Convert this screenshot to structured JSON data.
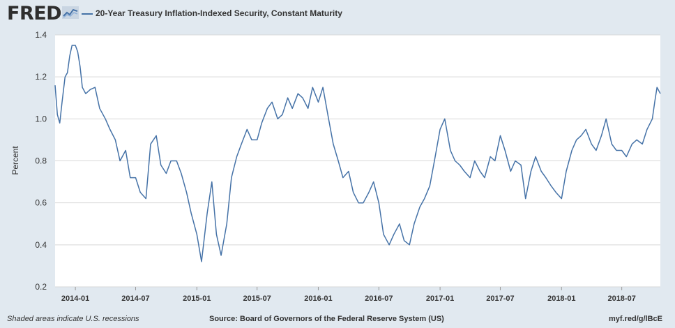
{
  "header": {
    "logo_text": "FRED",
    "series_title": "20-Year Treasury Inflation-Indexed Security, Constant Maturity"
  },
  "footer": {
    "recession_note": "Shaded areas indicate U.S. recessions",
    "source": "Source: Board of Governors of the Federal Reserve System (US)",
    "short_url": "myf.red/g/lBcE"
  },
  "colors": {
    "line": "#4572a7",
    "plot_bg": "#ffffff",
    "page_bg": "#e1e9f0"
  },
  "chart_data": {
    "type": "line",
    "title": "20-Year Treasury Inflation-Indexed Security, Constant Maturity",
    "xlabel": "",
    "ylabel": "Percent",
    "ylim": [
      0.2,
      1.4
    ],
    "xlim": [
      "2013-11-01",
      "2018-10-25"
    ],
    "yticks": [
      0.2,
      0.4,
      0.6,
      0.8,
      1.0,
      1.2,
      1.4
    ],
    "ytick_labels": [
      "0.2",
      "0.4",
      "0.6",
      "0.8",
      "1.0",
      "1.2",
      "1.4"
    ],
    "xtick_dates": [
      "2014-01-01",
      "2014-07-01",
      "2015-01-01",
      "2015-07-01",
      "2016-01-01",
      "2016-07-01",
      "2017-01-01",
      "2017-07-01",
      "2018-01-01",
      "2018-07-01"
    ],
    "xtick_labels": [
      "2014-01",
      "2014-07",
      "2015-01",
      "2015-07",
      "2016-01",
      "2016-07",
      "2017-01",
      "2017-07",
      "2018-01",
      "2018-07"
    ],
    "grid": true,
    "series": [
      {
        "name": "20-Year Treasury Inflation-Indexed Security, Constant Maturity",
        "x": [
          "2013-11-01",
          "2013-11-08",
          "2013-11-15",
          "2013-11-22",
          "2013-12-01",
          "2013-12-08",
          "2013-12-15",
          "2013-12-22",
          "2014-01-01",
          "2014-01-08",
          "2014-01-15",
          "2014-01-22",
          "2014-02-01",
          "2014-02-15",
          "2014-03-01",
          "2014-03-15",
          "2014-04-01",
          "2014-04-15",
          "2014-05-01",
          "2014-05-15",
          "2014-06-01",
          "2014-06-15",
          "2014-07-01",
          "2014-07-15",
          "2014-08-01",
          "2014-08-15",
          "2014-09-01",
          "2014-09-15",
          "2014-10-01",
          "2014-10-15",
          "2014-11-01",
          "2014-11-15",
          "2014-12-01",
          "2014-12-15",
          "2015-01-01",
          "2015-01-15",
          "2015-02-01",
          "2015-02-15",
          "2015-03-01",
          "2015-03-15",
          "2015-04-01",
          "2015-04-15",
          "2015-05-01",
          "2015-05-15",
          "2015-06-01",
          "2015-06-15",
          "2015-07-01",
          "2015-07-15",
          "2015-08-01",
          "2015-08-15",
          "2015-09-01",
          "2015-09-15",
          "2015-10-01",
          "2015-10-15",
          "2015-11-01",
          "2015-11-15",
          "2015-12-01",
          "2015-12-15",
          "2016-01-01",
          "2016-01-15",
          "2016-02-01",
          "2016-02-15",
          "2016-03-01",
          "2016-03-15",
          "2016-04-01",
          "2016-04-15",
          "2016-05-01",
          "2016-05-15",
          "2016-06-01",
          "2016-06-15",
          "2016-07-01",
          "2016-07-15",
          "2016-08-01",
          "2016-08-15",
          "2016-09-01",
          "2016-09-15",
          "2016-10-01",
          "2016-10-15",
          "2016-11-01",
          "2016-11-15",
          "2016-12-01",
          "2016-12-15",
          "2017-01-01",
          "2017-01-15",
          "2017-02-01",
          "2017-02-15",
          "2017-03-01",
          "2017-03-15",
          "2017-04-01",
          "2017-04-15",
          "2017-05-01",
          "2017-05-15",
          "2017-06-01",
          "2017-06-15",
          "2017-07-01",
          "2017-07-15",
          "2017-08-01",
          "2017-08-15",
          "2017-09-01",
          "2017-09-15",
          "2017-10-01",
          "2017-10-15",
          "2017-11-01",
          "2017-11-15",
          "2017-12-01",
          "2017-12-15",
          "2018-01-01",
          "2018-01-15",
          "2018-02-01",
          "2018-02-15",
          "2018-03-01",
          "2018-03-15",
          "2018-04-01",
          "2018-04-15",
          "2018-05-01",
          "2018-05-15",
          "2018-06-01",
          "2018-06-15",
          "2018-07-01",
          "2018-07-15",
          "2018-08-01",
          "2018-08-15",
          "2018-09-01",
          "2018-09-15",
          "2018-10-01",
          "2018-10-08",
          "2018-10-15",
          "2018-10-25"
        ],
        "values": [
          1.16,
          1.02,
          0.98,
          1.08,
          1.2,
          1.22,
          1.3,
          1.35,
          1.35,
          1.32,
          1.25,
          1.15,
          1.12,
          1.14,
          1.15,
          1.05,
          1.0,
          0.95,
          0.9,
          0.8,
          0.85,
          0.72,
          0.72,
          0.65,
          0.62,
          0.88,
          0.92,
          0.78,
          0.74,
          0.8,
          0.8,
          0.74,
          0.65,
          0.55,
          0.45,
          0.32,
          0.55,
          0.7,
          0.45,
          0.35,
          0.5,
          0.72,
          0.82,
          0.88,
          0.95,
          0.9,
          0.9,
          0.98,
          1.05,
          1.08,
          1.0,
          1.02,
          1.1,
          1.05,
          1.12,
          1.1,
          1.05,
          1.15,
          1.08,
          1.15,
          1.0,
          0.88,
          0.8,
          0.72,
          0.75,
          0.65,
          0.6,
          0.6,
          0.65,
          0.7,
          0.6,
          0.45,
          0.4,
          0.45,
          0.5,
          0.42,
          0.4,
          0.5,
          0.58,
          0.62,
          0.68,
          0.8,
          0.95,
          1.0,
          0.85,
          0.8,
          0.78,
          0.75,
          0.72,
          0.8,
          0.75,
          0.72,
          0.82,
          0.8,
          0.92,
          0.85,
          0.75,
          0.8,
          0.78,
          0.62,
          0.75,
          0.82,
          0.75,
          0.72,
          0.68,
          0.65,
          0.62,
          0.75,
          0.85,
          0.9,
          0.92,
          0.95,
          0.88,
          0.85,
          0.92,
          1.0,
          0.88,
          0.85,
          0.85,
          0.82,
          0.88,
          0.9,
          0.88,
          0.95,
          1.0,
          1.08,
          1.15,
          1.12
        ]
      }
    ]
  }
}
